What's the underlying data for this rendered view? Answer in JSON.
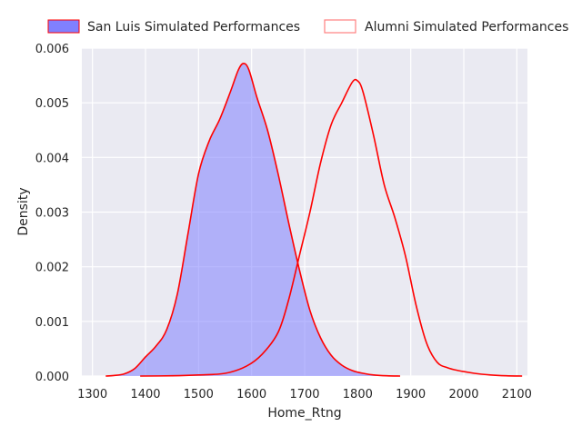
{
  "chart_data": {
    "type": "area",
    "title": "",
    "xlabel": "Home_Rtng",
    "ylabel": "Density",
    "xlim": [
      1280,
      2120
    ],
    "ylim": [
      0,
      0.006
    ],
    "x_ticks": [
      1300,
      1400,
      1500,
      1600,
      1700,
      1800,
      1900,
      2000,
      2100
    ],
    "x_tick_labels": [
      "1300",
      "1400",
      "1500",
      "1600",
      "1700",
      "1800",
      "1900",
      "2000",
      "2100"
    ],
    "y_ticks": [
      0,
      0.001,
      0.002,
      0.003,
      0.004,
      0.005,
      0.006
    ],
    "y_tick_labels": [
      "0.000",
      "0.001",
      "0.002",
      "0.003",
      "0.004",
      "0.005",
      "0.006"
    ],
    "grid": true,
    "legend_placement": "top, above plot, horizontal",
    "series": [
      {
        "name": "San Luis Simulated Performances",
        "fill_color": "#8080ff",
        "fill_opacity": 0.55,
        "line_color": "#ff0000",
        "points": [
          [
            1325,
            0
          ],
          [
            1340,
            1e-05
          ],
          [
            1360,
            4e-05
          ],
          [
            1380,
            0.00014
          ],
          [
            1400,
            0.00035
          ],
          [
            1420,
            0.00055
          ],
          [
            1440,
            0.00085
          ],
          [
            1460,
            0.0015
          ],
          [
            1480,
            0.0026
          ],
          [
            1500,
            0.0037
          ],
          [
            1520,
            0.0043
          ],
          [
            1540,
            0.0047
          ],
          [
            1560,
            0.0052
          ],
          [
            1575,
            0.0056
          ],
          [
            1585,
            0.00572
          ],
          [
            1595,
            0.0056
          ],
          [
            1610,
            0.0051
          ],
          [
            1630,
            0.0045
          ],
          [
            1650,
            0.0037
          ],
          [
            1670,
            0.0028
          ],
          [
            1690,
            0.00195
          ],
          [
            1710,
            0.0012
          ],
          [
            1730,
            0.0007
          ],
          [
            1750,
            0.00038
          ],
          [
            1770,
            0.0002
          ],
          [
            1790,
            0.0001
          ],
          [
            1810,
            5e-05
          ],
          [
            1830,
            2e-05
          ],
          [
            1855,
            5e-06
          ],
          [
            1880,
            0
          ]
        ]
      },
      {
        "name": "Alumni Simulated Performances",
        "fill_color": "#ffffff",
        "fill_opacity": 0,
        "line_color": "#ff0000",
        "legend_edge_color": "#ff8080",
        "points": [
          [
            1390,
            0
          ],
          [
            1450,
            5e-06
          ],
          [
            1500,
            2e-05
          ],
          [
            1550,
            5e-05
          ],
          [
            1590,
            0.00018
          ],
          [
            1620,
            0.0004
          ],
          [
            1650,
            0.0008
          ],
          [
            1670,
            0.0014
          ],
          [
            1690,
            0.0022
          ],
          [
            1710,
            0.003
          ],
          [
            1730,
            0.0039
          ],
          [
            1750,
            0.0046
          ],
          [
            1770,
            0.005
          ],
          [
            1790,
            0.00538
          ],
          [
            1800,
            0.0054
          ],
          [
            1810,
            0.0052
          ],
          [
            1830,
            0.0044
          ],
          [
            1850,
            0.0035
          ],
          [
            1870,
            0.0029
          ],
          [
            1890,
            0.0022
          ],
          [
            1910,
            0.0013
          ],
          [
            1930,
            0.0006
          ],
          [
            1950,
            0.00025
          ],
          [
            1970,
            0.00015
          ],
          [
            1990,
            0.0001
          ],
          [
            2020,
            5e-05
          ],
          [
            2050,
            2e-05
          ],
          [
            2080,
            5e-06
          ],
          [
            2110,
            0
          ]
        ]
      }
    ]
  }
}
